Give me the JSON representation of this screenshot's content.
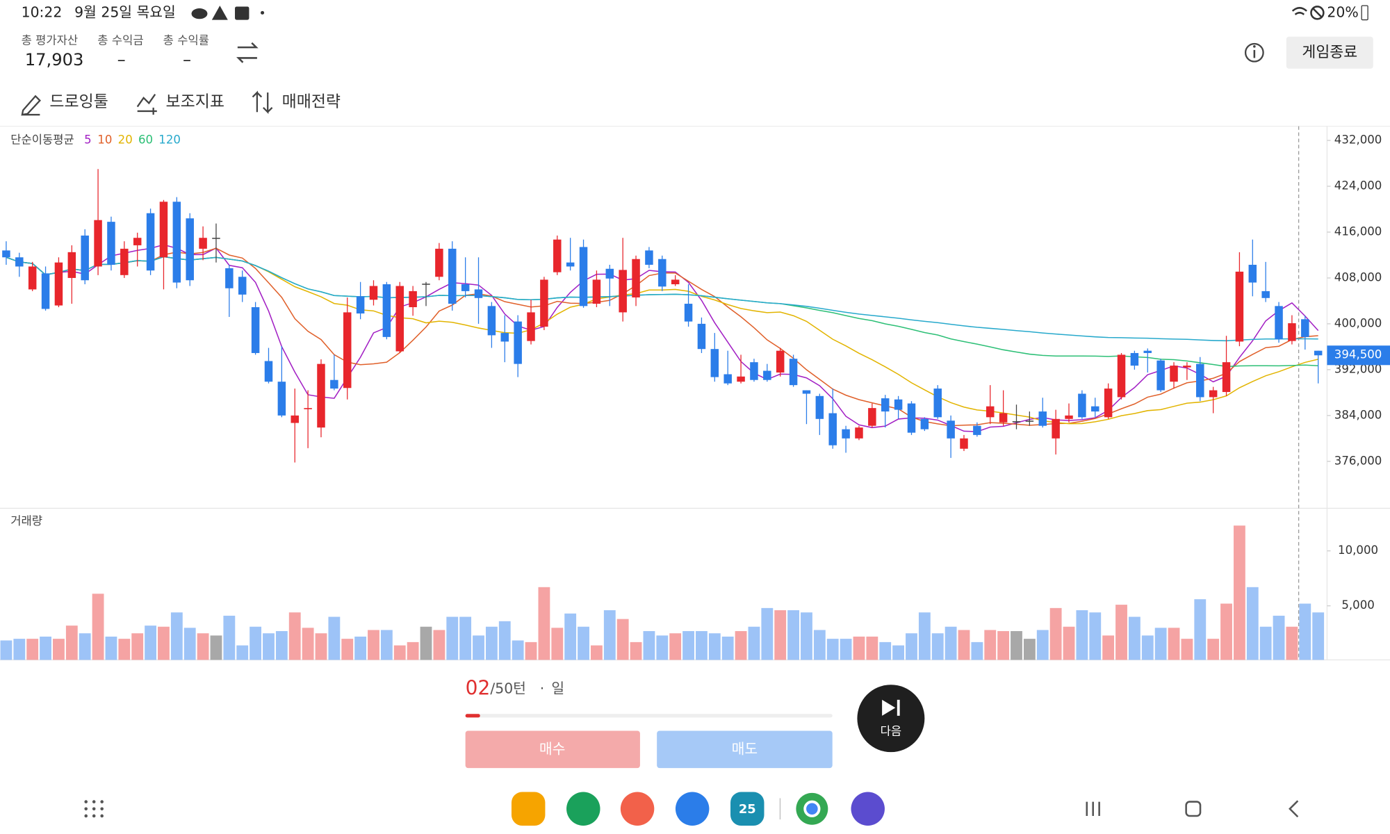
{
  "status_bar": {
    "time": "10:22",
    "date": "9월 25일 목요일",
    "battery": "20%"
  },
  "header": {
    "stats": [
      {
        "label": "총 평가자산",
        "value": "17,903"
      },
      {
        "label": "총 수익금",
        "value": "–"
      },
      {
        "label": "총 수익률",
        "value": "–"
      }
    ],
    "end_button": "게임종료"
  },
  "toolbar": [
    "드로잉툴",
    "보조지표",
    "매매전략"
  ],
  "chart_data": [
    {
      "type": "candlestick",
      "title": "단순이동평균",
      "ma_periods": [
        5,
        10,
        20,
        60,
        120
      ],
      "ma_colors": [
        "#a21fc4",
        "#e0602a",
        "#e2b400",
        "#2cbf76",
        "#27a9cc"
      ],
      "up_color": "#e8262c",
      "down_color": "#2b7de9",
      "flat_color": "#444444",
      "open": [
        412800,
        411600,
        406000,
        408800,
        403200,
        408000,
        415400,
        410000,
        417800,
        408500,
        413700,
        419300,
        411600,
        421300,
        418400,
        413100,
        415000,
        409700,
        408200,
        402900,
        393500,
        389900,
        382700,
        385100,
        381900,
        390200,
        388800,
        404800,
        404200,
        406900,
        395200,
        402900,
        407000,
        408200,
        413100,
        406900,
        406000,
        403100,
        398400,
        400400,
        397000,
        399500,
        409000,
        410700,
        413400,
        403500,
        409600,
        402000,
        404600,
        412800,
        411300,
        406900,
        403500,
        400000,
        395600,
        391200,
        389900,
        393300,
        391800,
        391500,
        393900,
        388400,
        387400,
        384400,
        381600,
        380000,
        382200,
        387000,
        386800,
        386100,
        383400,
        388700,
        383100,
        378200,
        382200,
        383700,
        382800,
        383000,
        383100,
        384700,
        380000,
        383400,
        387800,
        385600,
        383700,
        387200,
        394900,
        395300,
        393600,
        389900,
        392400,
        393000,
        387200,
        388100,
        396900,
        410300,
        405700,
        403100,
        397000,
        400800,
        395300
      ],
      "high": [
        414400,
        412400,
        410800,
        410000,
        411600,
        413700,
        416500,
        427000,
        418700,
        414400,
        415900,
        420100,
        421600,
        422100,
        419300,
        417000,
        417500,
        410300,
        409300,
        403800,
        395800,
        396100,
        388700,
        388400,
        393800,
        394600,
        404600,
        407300,
        407600,
        407300,
        407300,
        406600,
        407300,
        414100,
        414400,
        411600,
        411600,
        403800,
        401500,
        401500,
        404200,
        408200,
        415400,
        415000,
        414700,
        409300,
        410300,
        415000,
        411900,
        413400,
        411900,
        408500,
        406900,
        401100,
        398400,
        395300,
        394600,
        393900,
        393000,
        395800,
        394600,
        388400,
        387800,
        388700,
        382200,
        382200,
        386100,
        387600,
        387400,
        386500,
        383700,
        389300,
        384000,
        380600,
        382800,
        389300,
        388400,
        385900,
        384700,
        387100,
        385000,
        386100,
        388400,
        387100,
        389600,
        394900,
        395300,
        395700,
        393900,
        393300,
        393300,
        394200,
        389000,
        397900,
        412500,
        414700,
        410800,
        403800,
        401500,
        401400,
        395300
      ],
      "low": [
        410300,
        408200,
        405700,
        402300,
        402900,
        403500,
        406900,
        408500,
        409300,
        408000,
        410000,
        408500,
        406000,
        406200,
        406600,
        411100,
        410700,
        401200,
        403800,
        394600,
        389600,
        383700,
        375800,
        378300,
        380200,
        388400,
        386800,
        400800,
        403200,
        397300,
        394900,
        401400,
        403100,
        407600,
        402300,
        404600,
        400000,
        395800,
        393300,
        390700,
        396400,
        398900,
        408500,
        409300,
        402800,
        402900,
        403100,
        400400,
        403100,
        409700,
        405700,
        406600,
        399500,
        394900,
        389900,
        389300,
        389600,
        389900,
        389900,
        390800,
        389000,
        382500,
        380600,
        378200,
        377500,
        379700,
        381900,
        381900,
        383400,
        380600,
        381300,
        383400,
        376600,
        377800,
        380300,
        382500,
        382200,
        381600,
        382200,
        381900,
        377200,
        382800,
        383400,
        383700,
        383400,
        386800,
        392000,
        391500,
        388100,
        388700,
        390200,
        386500,
        384400,
        387400,
        396100,
        404800,
        403800,
        396700,
        396400,
        395500,
        389600
      ],
      "close": [
        411600,
        410000,
        410000,
        402600,
        410700,
        412500,
        407600,
        418100,
        410300,
        413100,
        415000,
        409300,
        421300,
        407200,
        407600,
        415000,
        415000,
        406200,
        405100,
        394900,
        389900,
        384000,
        384000,
        385300,
        393000,
        388700,
        402000,
        401800,
        406600,
        397700,
        406600,
        405700,
        407000,
        413100,
        403500,
        405700,
        404500,
        398000,
        396900,
        393000,
        402000,
        407700,
        414700,
        410000,
        403100,
        407700,
        407900,
        409400,
        411300,
        410300,
        406500,
        407700,
        400400,
        395600,
        390700,
        389600,
        390800,
        390200,
        390200,
        395300,
        389300,
        387800,
        383400,
        378800,
        380000,
        381900,
        385300,
        384700,
        385000,
        381000,
        381600,
        383700,
        380000,
        380000,
        380600,
        385600,
        384400,
        383000,
        383100,
        382200,
        383400,
        384000,
        383700,
        384700,
        388700,
        394600,
        392700,
        394900,
        388400,
        392700,
        392700,
        387200,
        388400,
        393300,
        409100,
        407200,
        404500,
        397300,
        400100,
        397700,
        394500
      ],
      "last_close_label": "394,500",
      "ylim": [
        367960,
        434320
      ],
      "yticks": [
        {
          "value": 376000,
          "label": "376,000"
        },
        {
          "value": 384000,
          "label": "384,000"
        },
        {
          "value": 392000,
          "label": "392,000"
        },
        {
          "value": 400000,
          "label": "400,000"
        },
        {
          "value": 408000,
          "label": "408,000"
        },
        {
          "value": 416000,
          "label": "416,000"
        },
        {
          "value": 424000,
          "label": "424,000"
        },
        {
          "value": 432000,
          "label": "432,000"
        }
      ]
    },
    {
      "type": "bar",
      "title": "거래량",
      "up_color": "#f5a3a3",
      "down_color": "#9dc3f7",
      "flat_color": "#a8a8a8",
      "values": [
        1850,
        2000,
        2000,
        2200,
        2000,
        3200,
        2500,
        6100,
        2200,
        2000,
        2500,
        3200,
        3100,
        4400,
        3000,
        2500,
        2300,
        4100,
        1400,
        3100,
        2500,
        2700,
        4400,
        3000,
        2500,
        4000,
        2000,
        2200,
        2800,
        2800,
        1400,
        1700,
        3100,
        2800,
        4000,
        4000,
        2300,
        3100,
        3600,
        1850,
        1700,
        6700,
        3000,
        4300,
        3100,
        1400,
        4600,
        3800,
        1700,
        2700,
        2300,
        2500,
        2700,
        2700,
        2500,
        2200,
        2700,
        3100,
        4800,
        4600,
        4600,
        4400,
        2800,
        2000,
        2000,
        2200,
        2200,
        1700,
        1400,
        2500,
        4400,
        2500,
        3100,
        2800,
        1700,
        2800,
        2700,
        2700,
        2000,
        2800,
        4800,
        3100,
        4600,
        4400,
        2300,
        5100,
        4000,
        2300,
        3000,
        3000,
        2000,
        5600,
        2000,
        5200,
        12300,
        6700,
        3100,
        4100,
        3100,
        5200,
        4400
      ],
      "ylim": [
        0,
        13710
      ],
      "yticks": [
        {
          "value": 5000,
          "label": "5,000"
        },
        {
          "value": 10000,
          "label": "10,000"
        }
      ]
    }
  ],
  "game": {
    "turn": {
      "value": 2,
      "label": "02"
    },
    "turn_separator": "/",
    "total_turns": 50,
    "turn_unit": "턴",
    "dot": "·",
    "period": "일",
    "buy": "매수",
    "sell": "매도",
    "next": "다음"
  },
  "dock": {
    "calendar_day": "25"
  }
}
